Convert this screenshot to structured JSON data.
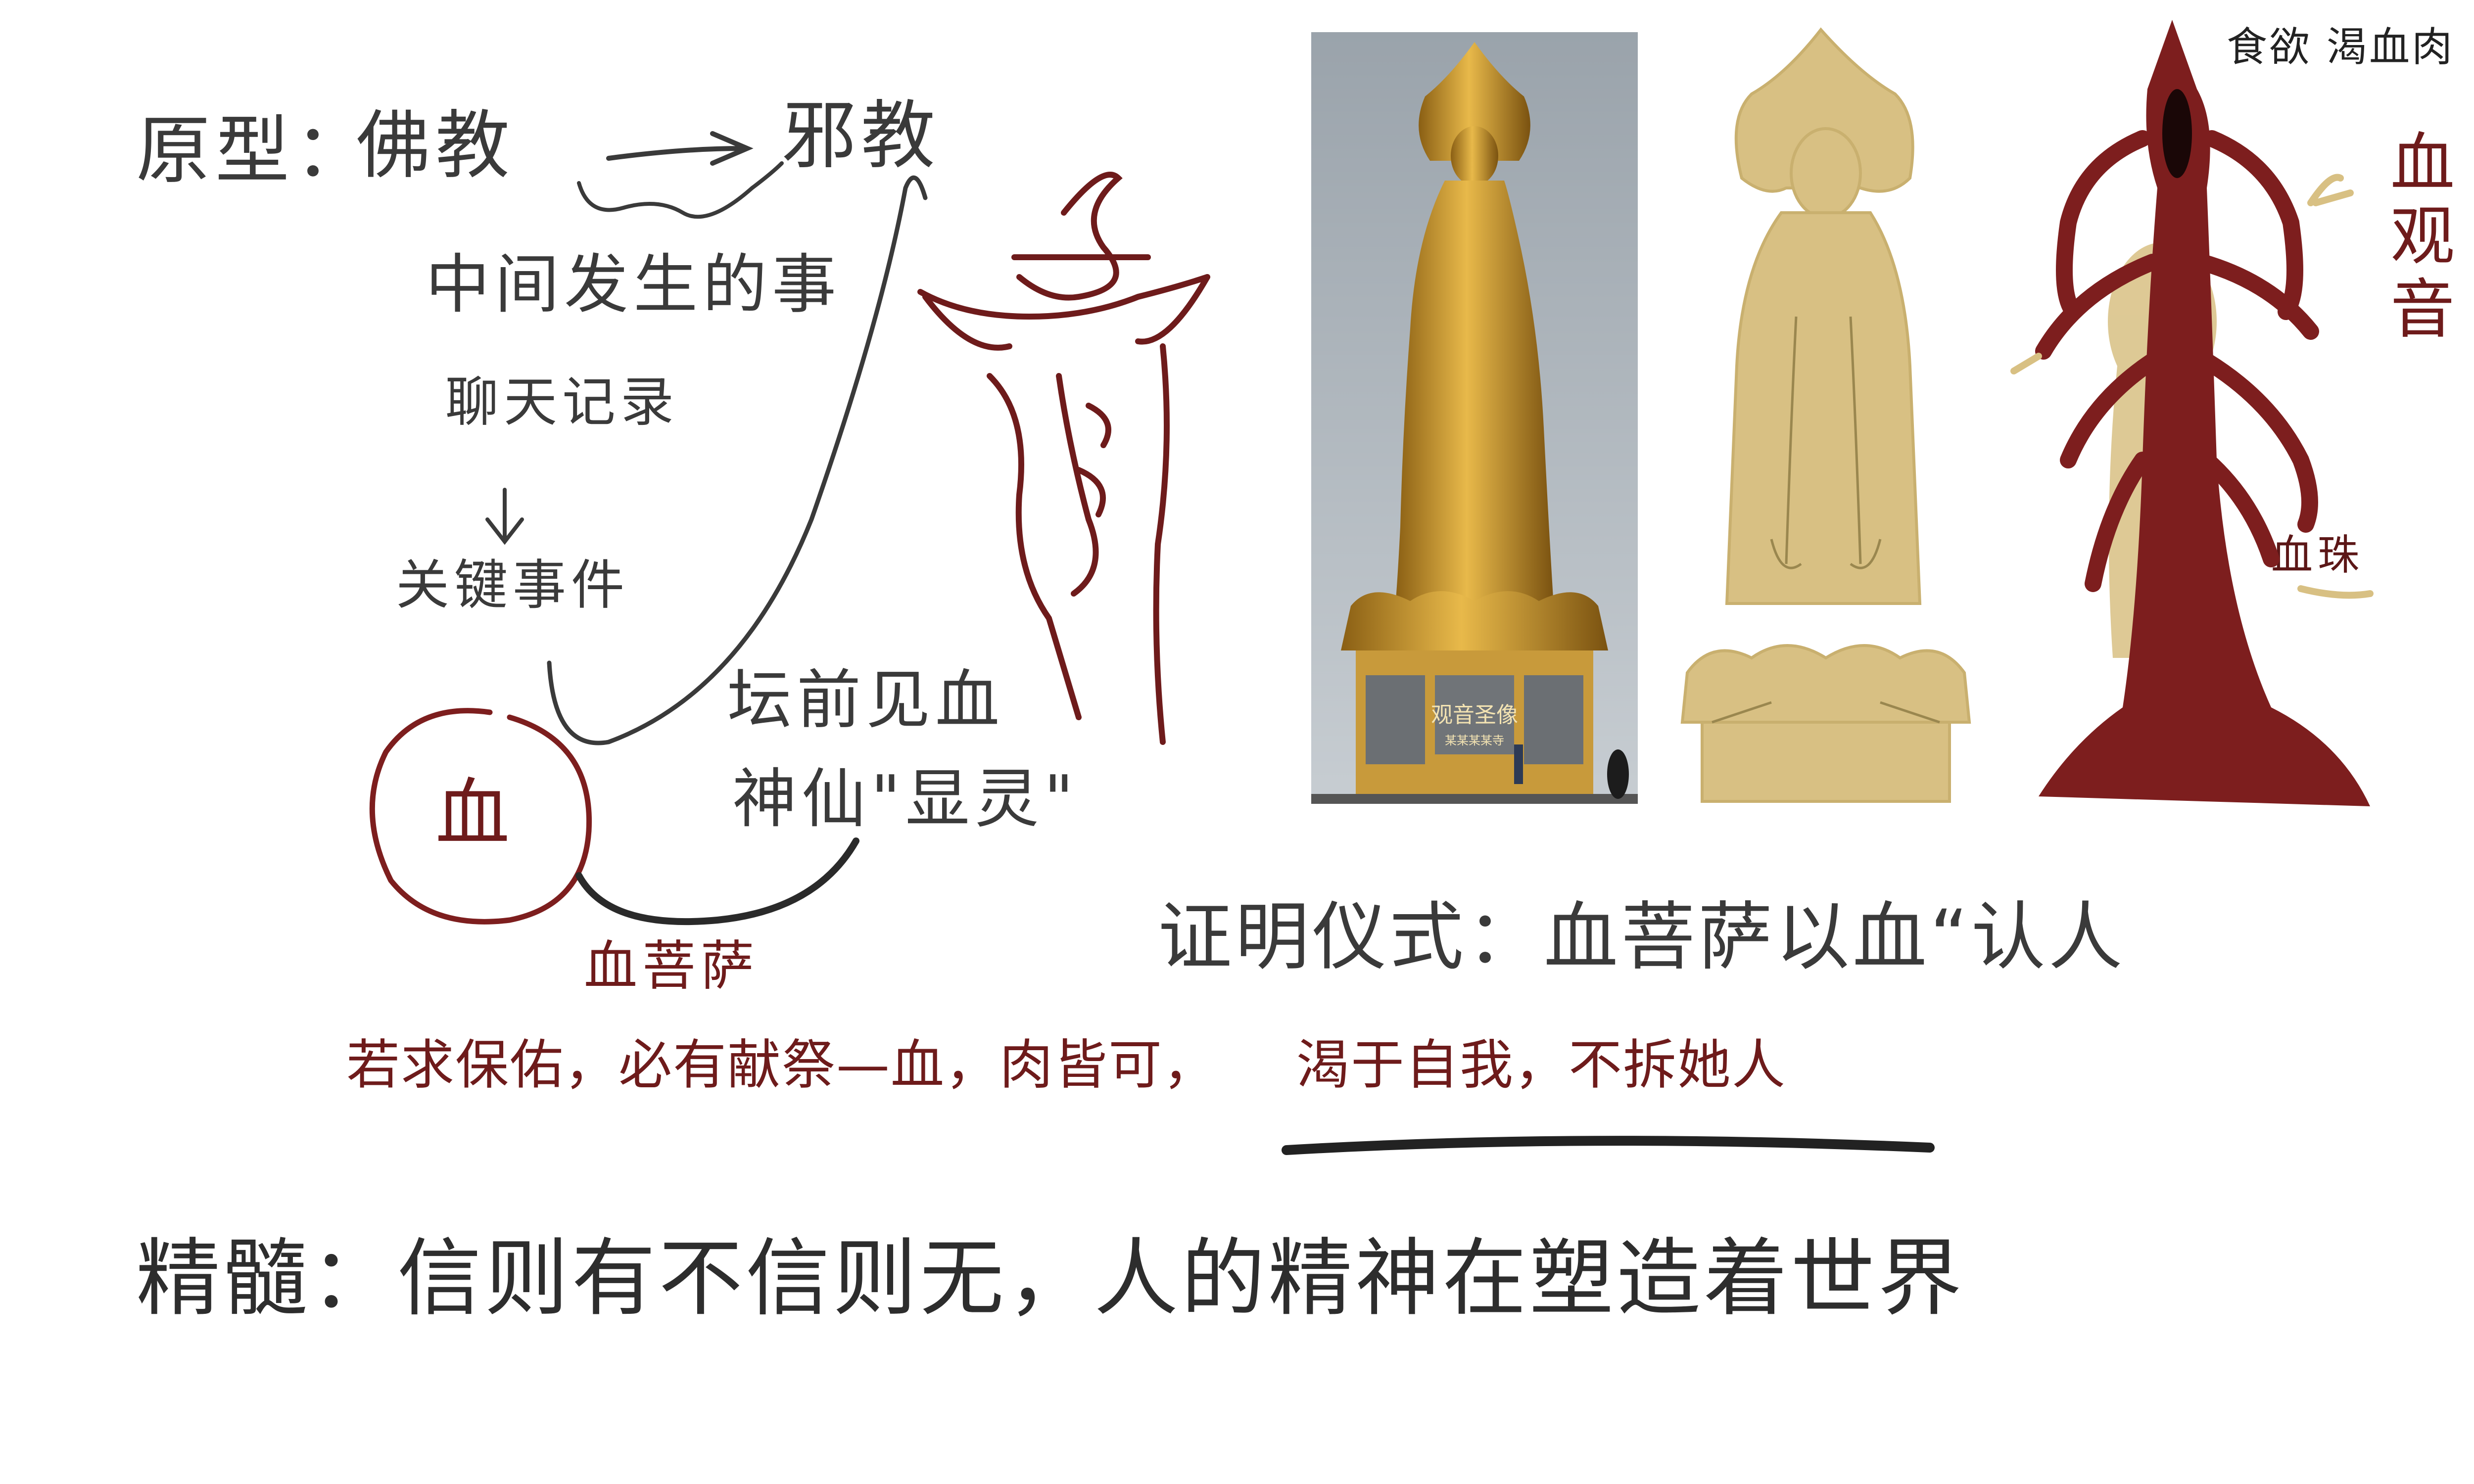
{
  "notes": {
    "prototype": {
      "label": "原型：",
      "from": "佛教",
      "to": "邪教"
    },
    "middle_events": "中间发生的事",
    "chat_records": "聊天记录",
    "key_event": "关键事件",
    "altar": {
      "line1": "坛前见血",
      "line2": "神仙\"显灵\""
    },
    "circled_char": "血",
    "red_bodhisattva": "血菩萨",
    "prayer": {
      "part1": "若求保佑，必有献祭—血，肉皆可，",
      "part2": "渴于自我，不拆她人"
    },
    "proof_ritual": "证明仪式：血菩萨以血“认人",
    "core": "精髓：信则有不信则无，人的精神在塑造着世界",
    "top_right_caption": "食欲 渴血肉",
    "side_label_vertical": "血观音",
    "lower_label": "血珠"
  },
  "photo": {
    "plaque_title": "观音圣像",
    "plaque_subtitle": "某某某某寺"
  },
  "colors": {
    "ink_gray": "#3a3a3a",
    "ink_red": "#6e1b1b",
    "gold": "#d8c083",
    "blood": "#7d1e1e"
  }
}
